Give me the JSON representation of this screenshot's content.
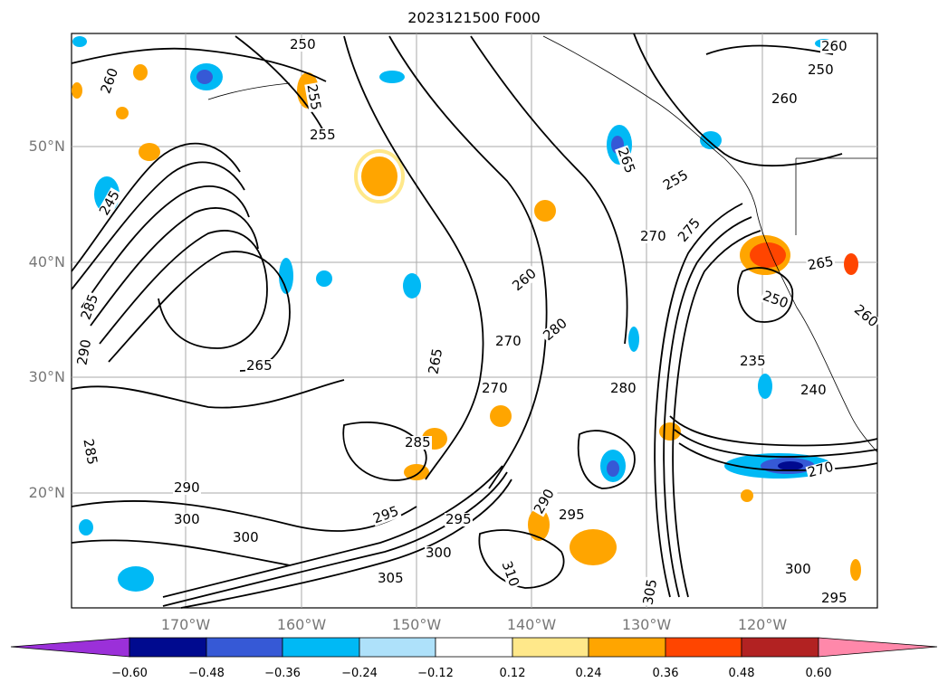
{
  "title": "2023121500 F000",
  "map": {
    "lat_labels": [
      "50°N",
      "40°N",
      "30°N",
      "20°N"
    ],
    "lon_labels": [
      "170°W",
      "160°W",
      "150°W",
      "140°W",
      "130°W",
      "120°W"
    ],
    "contour_labels": [
      "260",
      "255",
      "250",
      "245",
      "265",
      "285",
      "290",
      "285",
      "270",
      "280",
      "270",
      "280",
      "295",
      "300",
      "305",
      "310",
      "290",
      "295",
      "300",
      "270",
      "275",
      "265",
      "260",
      "255",
      "250",
      "235",
      "240",
      "265",
      "260",
      "250",
      "255",
      "260",
      "265",
      "260",
      "270",
      "290",
      "300",
      "285",
      "295",
      "305",
      "300",
      "295"
    ]
  },
  "colorbar": {
    "ticks": [
      "−0.60",
      "−0.48",
      "−0.36",
      "−0.24",
      "−0.12",
      "0.12",
      "0.24",
      "0.36",
      "0.48",
      "0.60"
    ],
    "colors": [
      "#9b30d9",
      "#000a8f",
      "#3659d6",
      "#00b9f5",
      "#aee1fa",
      "#ffffff",
      "#ffe88a",
      "#ffa500",
      "#ff4500",
      "#b22222",
      "#ff88aa"
    ]
  }
}
